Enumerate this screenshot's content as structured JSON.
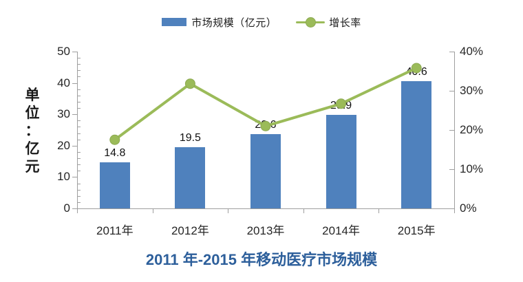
{
  "legend": {
    "bar_label": "市场规模（亿元）",
    "line_label": "增长率"
  },
  "y_axis": {
    "title": "单位：亿元"
  },
  "title": "2011 年-2015 年移动医疗市场规模",
  "colors": {
    "bar": "#4f81bd",
    "line": "#9bbb59",
    "marker_fill": "#9bbb59",
    "marker_stroke": "#8ca951",
    "axis": "#9e9e9e",
    "title": "#2d5f9b",
    "text": "#262626"
  },
  "chart_data": {
    "type": "bar",
    "combo": "bar+line",
    "title": "2011 年-2015 年移动医疗市场规模",
    "categories": [
      "2011年",
      "2012年",
      "2013年",
      "2014年",
      "2015年"
    ],
    "series": [
      {
        "name": "市场规模（亿元）",
        "type": "bar",
        "axis": "left",
        "values": [
          14.8,
          19.5,
          23.6,
          29.9,
          40.6
        ],
        "value_labels": [
          "14.8",
          "19.5",
          "23.6",
          "29.9",
          "40.6"
        ]
      },
      {
        "name": "增长率",
        "type": "line",
        "axis": "right",
        "values_percent_estimated": [
          17.5,
          31.8,
          21.0,
          26.7,
          35.8
        ],
        "value_labels_shown": false
      }
    ],
    "left_axis": {
      "title": "单位：亿元",
      "min": 0,
      "max": 50,
      "major_step": 10,
      "minor_step": 2,
      "tick_labels": [
        "0",
        "10",
        "20",
        "30",
        "40",
        "50"
      ]
    },
    "right_axis": {
      "min": 0,
      "max": 40,
      "major_step": 10,
      "tick_labels": [
        "0%",
        "10%",
        "20%",
        "30%",
        "40%"
      ]
    },
    "legend_position": "top",
    "grid": false
  }
}
